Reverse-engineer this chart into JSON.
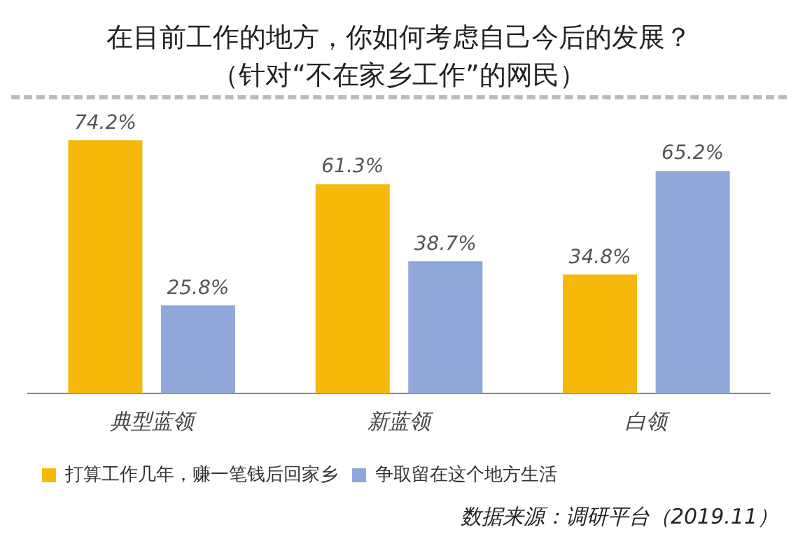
{
  "chart_data": {
    "type": "bar",
    "title": "在目前工作的地方，你如何考虑自己今后的发展？",
    "subtitle": "（针对“不在家乡工作”的网民）",
    "categories": [
      "典型蓝领",
      "新蓝领",
      "白领"
    ],
    "series": [
      {
        "name": "打算工作几年，赚一笔钱后回家乡",
        "color": "#f6b90a",
        "values": [
          74.2,
          61.3,
          34.8
        ],
        "value_labels": [
          "74.2%",
          "61.3%",
          "34.8%"
        ]
      },
      {
        "name": "争取留在这个地方生活",
        "color": "#8fa7da",
        "values": [
          25.8,
          38.7,
          65.2
        ],
        "value_labels": [
          "25.8%",
          "38.7%",
          "65.2%"
        ]
      }
    ],
    "tick_labels": "x",
    "grid": false,
    "legend": "bottom left",
    "annotations": [
      "数据来源：调研平台（2019.11）"
    ]
  }
}
